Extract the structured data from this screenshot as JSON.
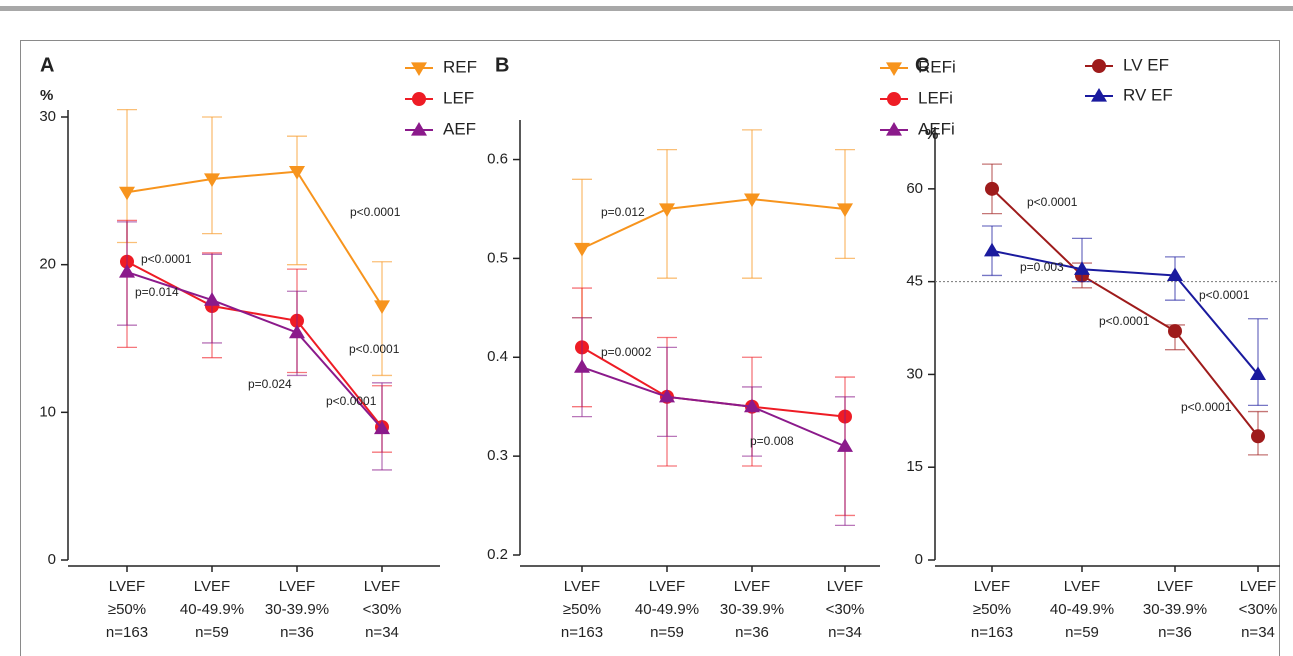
{
  "chart_data": [
    {
      "type": "line",
      "title": "A",
      "y_label": "%",
      "categories": [
        [
          "LVEF",
          "≥50%",
          "n=163"
        ],
        [
          "LVEF",
          "40-49.9%",
          "n=59"
        ],
        [
          "LVEF",
          "30-39.9%",
          "n=36"
        ],
        [
          "LVEF",
          "<30%",
          "n=34"
        ]
      ],
      "ylim": [
        0,
        30
      ],
      "yticks": [
        0,
        10,
        20,
        30
      ],
      "series": [
        {
          "name": "REF",
          "color": "#f7941d",
          "marker": "triangle-down",
          "values": [
            24.9,
            25.8,
            26.3,
            17.2
          ],
          "lower": [
            21.5,
            22.1,
            20.0,
            12.5
          ],
          "upper": [
            30.5,
            30.0,
            28.7,
            20.2
          ]
        },
        {
          "name": "LEF",
          "color": "#ee1c25",
          "marker": "circle",
          "values": [
            20.2,
            17.2,
            16.2,
            9.0
          ],
          "lower": [
            14.4,
            13.7,
            12.7,
            7.3
          ],
          "upper": [
            23.0,
            20.8,
            19.7,
            11.8
          ]
        },
        {
          "name": "AEF",
          "color": "#8b1a8b",
          "marker": "triangle-up",
          "values": [
            19.5,
            17.6,
            15.4,
            8.9
          ],
          "lower": [
            15.9,
            14.7,
            12.5,
            6.1
          ],
          "upper": [
            22.9,
            20.7,
            18.2,
            12.0
          ]
        }
      ],
      "annotations": [
        "p<0.0001",
        "p<0.0001",
        "p=0.014",
        "p=0.024",
        "p<0.0001",
        "p<0.0001"
      ]
    },
    {
      "type": "line",
      "title": "B",
      "categories": [
        [
          "LVEF",
          "≥50%",
          "n=163"
        ],
        [
          "LVEF",
          "40-49.9%",
          "n=59"
        ],
        [
          "LVEF",
          "30-39.9%",
          "n=36"
        ],
        [
          "LVEF",
          "<30%",
          "n=34"
        ]
      ],
      "ylim": [
        0.2,
        0.64
      ],
      "yticks": [
        0.2,
        0.3,
        0.4,
        0.5,
        0.6
      ],
      "series": [
        {
          "name": "REFi",
          "color": "#f7941d",
          "marker": "triangle-down",
          "values": [
            0.51,
            0.55,
            0.56,
            0.55
          ],
          "lower": [
            0.44,
            0.48,
            0.48,
            0.5
          ],
          "upper": [
            0.58,
            0.61,
            0.63,
            0.61
          ]
        },
        {
          "name": "LEFi",
          "color": "#ee1c25",
          "marker": "circle",
          "values": [
            0.41,
            0.36,
            0.35,
            0.34
          ],
          "lower": [
            0.35,
            0.29,
            0.29,
            0.24
          ],
          "upper": [
            0.47,
            0.42,
            0.4,
            0.38
          ]
        },
        {
          "name": "AEFi",
          "color": "#8b1a8b",
          "marker": "triangle-up",
          "values": [
            0.39,
            0.36,
            0.35,
            0.31
          ],
          "lower": [
            0.34,
            0.32,
            0.3,
            0.23
          ],
          "upper": [
            0.44,
            0.41,
            0.37,
            0.36
          ]
        }
      ],
      "annotations": [
        "p=0.012",
        "p=0.0002",
        "p=0.008"
      ]
    },
    {
      "type": "line",
      "title": "C",
      "y_label": "%",
      "categories": [
        [
          "LVEF",
          "≥50%",
          "n=163"
        ],
        [
          "LVEF",
          "40-49.9%",
          "n=59"
        ],
        [
          "LVEF",
          "30-39.9%",
          "n=36"
        ],
        [
          "LVEF",
          "<30%",
          "n=34"
        ]
      ],
      "ylim": [
        0,
        70
      ],
      "yticks": [
        0,
        15,
        30,
        45,
        60
      ],
      "reference_line": 45,
      "series": [
        {
          "name": "LV EF",
          "color": "#9e1b1b",
          "marker": "circle",
          "values": [
            60,
            46,
            37,
            20
          ],
          "lower": [
            56,
            44,
            34,
            17
          ],
          "upper": [
            64,
            48,
            38,
            24
          ]
        },
        {
          "name": "RV EF",
          "color": "#1a1a9e",
          "marker": "triangle-up",
          "values": [
            50,
            47,
            46,
            30
          ],
          "lower": [
            46,
            45,
            42,
            25
          ],
          "upper": [
            54,
            52,
            49,
            39
          ]
        }
      ],
      "annotations": [
        "p<0.0001",
        "p=0.003",
        "p<0.0001",
        "p<0.0001",
        "p<0.0001"
      ]
    }
  ]
}
